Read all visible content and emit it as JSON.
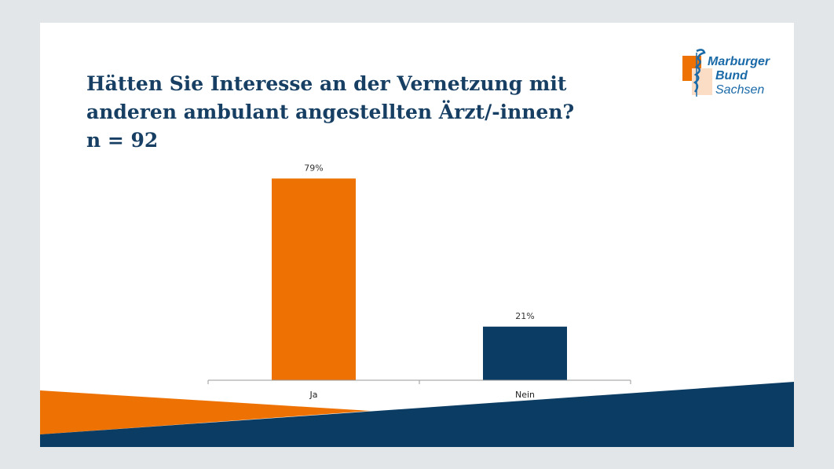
{
  "title": {
    "line1": "Hätten Sie Interesse an der Vernetzung mit",
    "line2": "anderen ambulant angestellten Ärzt/-innen?",
    "line3": "n = 92"
  },
  "logo": {
    "line1": "Marburger",
    "line2": "Bund",
    "line3": "Sachsen"
  },
  "colors": {
    "orange": "#ee7203",
    "navy": "#0b3c63",
    "title": "#173f63"
  },
  "chart_data": {
    "type": "bar",
    "title": "Hätten Sie Interesse an der Vernetzung mit anderen ambulant angestellten Ärzt/-innen? n = 92",
    "categories": [
      "Ja",
      "Nein"
    ],
    "values": [
      79,
      21
    ],
    "value_labels": [
      "79%",
      "21%"
    ],
    "bar_colors": [
      "#ee7203",
      "#0b3c63"
    ],
    "ylim": [
      0,
      100
    ],
    "grid": false,
    "xlabel": "",
    "ylabel": ""
  }
}
